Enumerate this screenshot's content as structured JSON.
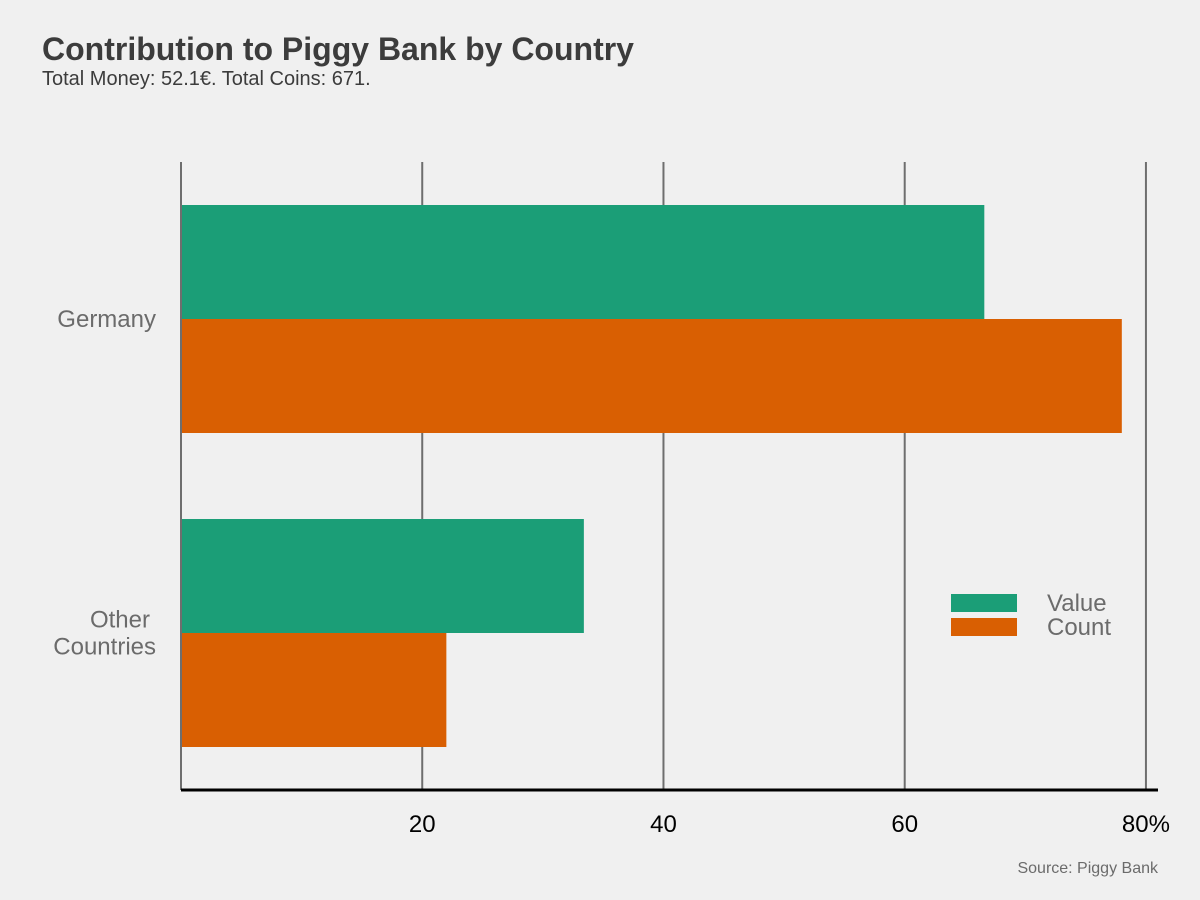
{
  "chart_data": {
    "type": "bar",
    "orientation": "horizontal",
    "title": "Contribution to Piggy Bank by Country",
    "subtitle": "Total Money: 52.1€. Total Coins: 671.",
    "caption": "Source: Piggy Bank",
    "categories": [
      "Germany",
      "Other Countries"
    ],
    "category_lines": [
      [
        "Germany"
      ],
      [
        "Other",
        "Countries"
      ]
    ],
    "series": [
      {
        "name": "Value",
        "color": "#1b9e77",
        "values": [
          66.6,
          33.4
        ]
      },
      {
        "name": "Count",
        "color": "#d95f02",
        "values": [
          78.0,
          22.0
        ]
      }
    ],
    "xlim": [
      0,
      81
    ],
    "x_ticks": [
      20,
      40,
      60,
      80
    ],
    "x_tick_labels": [
      "20",
      "40",
      "60",
      "80%"
    ],
    "grid": true,
    "legend_position": "right"
  }
}
